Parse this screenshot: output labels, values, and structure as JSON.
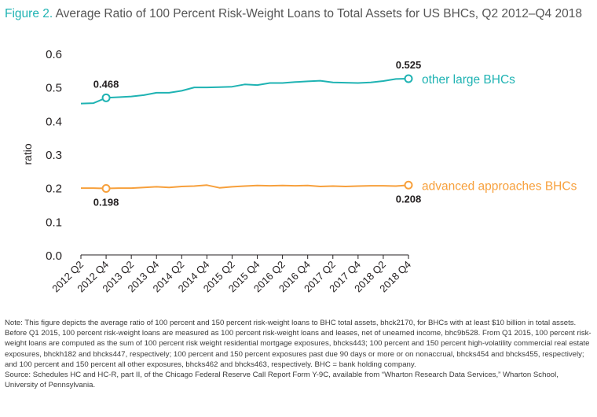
{
  "title": {
    "figure_label": "Figure 2.",
    "text": "Average Ratio of 100 Percent Risk-Weight Loans to Total Assets for US BHCs, Q2 2012–Q4 2018"
  },
  "colors": {
    "other_large": "#1fb3b3",
    "advanced": "#f7a03c",
    "figure_label": "#1fb3b3",
    "axis": "#231f20"
  },
  "chart_data": {
    "type": "line",
    "ylabel": "ratio",
    "ylim": [
      0,
      0.6
    ],
    "yticks": [
      "0.0",
      "0.1",
      "0.2",
      "0.3",
      "0.4",
      "0.5",
      "0.6"
    ],
    "x": [
      "2012 Q2",
      "2012 Q3",
      "2012 Q4",
      "2013 Q1",
      "2013 Q2",
      "2013 Q3",
      "2013 Q4",
      "2014 Q1",
      "2014 Q2",
      "2014 Q3",
      "2014 Q4",
      "2015 Q1",
      "2015 Q2",
      "2015 Q3",
      "2015 Q4",
      "2016 Q1",
      "2016 Q2",
      "2016 Q3",
      "2016 Q4",
      "2017 Q1",
      "2017 Q2",
      "2017 Q3",
      "2017 Q4",
      "2018 Q1",
      "2018 Q2",
      "2018 Q3",
      "2018 Q4"
    ],
    "xtick_labels": [
      "2012 Q2",
      "2012 Q4",
      "2013 Q2",
      "2013 Q4",
      "2014 Q2",
      "2014 Q4",
      "2015 Q2",
      "2015 Q4",
      "2016 Q2",
      "2016 Q4",
      "2017 Q2",
      "2017 Q4",
      "2018 Q2",
      "2018 Q4"
    ],
    "series": [
      {
        "name": "other large BHCs",
        "values": [
          0.451,
          0.452,
          0.468,
          0.47,
          0.472,
          0.476,
          0.483,
          0.483,
          0.489,
          0.499,
          0.499,
          0.5,
          0.501,
          0.508,
          0.506,
          0.512,
          0.512,
          0.515,
          0.517,
          0.519,
          0.514,
          0.513,
          0.512,
          0.514,
          0.518,
          0.524,
          0.525
        ],
        "labels": [
          {
            "index": 2,
            "text": "0.468"
          },
          {
            "index": 26,
            "text": "0.525"
          }
        ]
      },
      {
        "name": "advanced approaches BHCs",
        "values": [
          0.199,
          0.199,
          0.198,
          0.199,
          0.199,
          0.201,
          0.203,
          0.201,
          0.204,
          0.205,
          0.208,
          0.2,
          0.203,
          0.205,
          0.207,
          0.206,
          0.207,
          0.206,
          0.207,
          0.204,
          0.205,
          0.204,
          0.205,
          0.206,
          0.206,
          0.205,
          0.208
        ],
        "labels": [
          {
            "index": 2,
            "text": "0.198"
          },
          {
            "index": 26,
            "text": "0.208"
          }
        ]
      }
    ]
  },
  "note": {
    "text": "Note: This figure depicts the average ratio of 100 percent and 150 percent risk-weight loans to BHC total assets, bhck2170, for BHCs with at least $10 billion in total assets. Before Q1 2015, 100 percent risk-weight loans are measured as 100 percent risk-weight loans and leases, net of unearned income, bhc9b528. From Q1 2015, 100 percent risk-weight loans are computed as the sum of 100 percent risk weight residential mortgage exposures, bhcks443; 100 percent and 150 percent high-volatility commercial real estate exposures, bhckh182 and bhcks447, respectively; 100 percent and 150 percent exposures past due 90 days or more or on nonaccrual, bhcks454 and bhcks455, respectively; and 100 percent and 150 percent all other exposures, bhcks462 and bhcks463, respectively. BHC = bank holding company.",
    "source": "Source: Schedules HC and HC-R, part II, of the Chicago Federal Reserve Call Report Form Y-9C, available from “Wharton Research Data Services,” Wharton School, University of Pennsylvania."
  }
}
